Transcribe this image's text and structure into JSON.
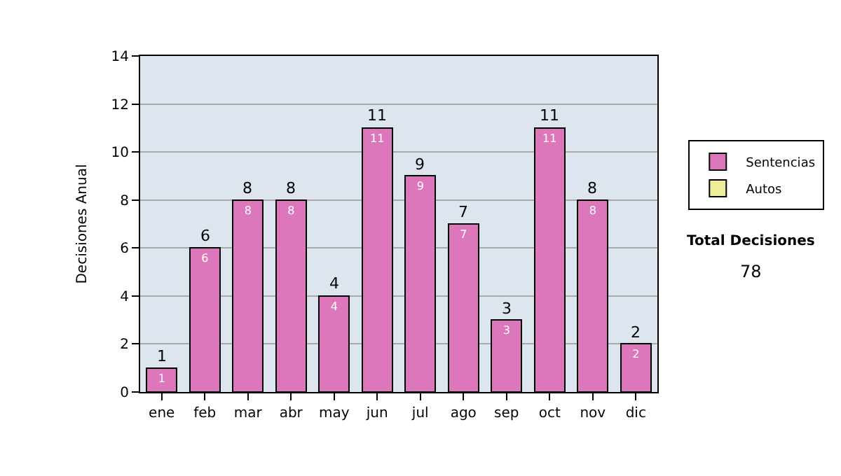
{
  "chart_data": {
    "type": "bar",
    "stacked": true,
    "ylabel": "Decisiones Anual",
    "categories": [
      "ene",
      "feb",
      "mar",
      "abr",
      "may",
      "jun",
      "jul",
      "ago",
      "sep",
      "oct",
      "nov",
      "dic"
    ],
    "series": [
      {
        "name": "Sentencias",
        "color": "#dd77bb",
        "values": [
          1,
          6,
          8,
          8,
          4,
          11,
          9,
          7,
          3,
          11,
          8,
          2
        ]
      },
      {
        "name": "Autos",
        "color": "#eeee99",
        "values": [
          null,
          null,
          null,
          null,
          null,
          null,
          null,
          null,
          null,
          null,
          null,
          null
        ]
      }
    ],
    "totals": [
      "1",
      "6",
      "8",
      "8",
      "4",
      "11",
      "9",
      "7",
      "3",
      "11",
      "8",
      "2"
    ],
    "data_labels": true,
    "ylim": [
      0,
      14
    ],
    "yticks": [
      0,
      2,
      4,
      6,
      8,
      10,
      12,
      14
    ],
    "grid": "y",
    "legend": "right",
    "annotations": [
      "Total Decisiones",
      "78"
    ]
  }
}
